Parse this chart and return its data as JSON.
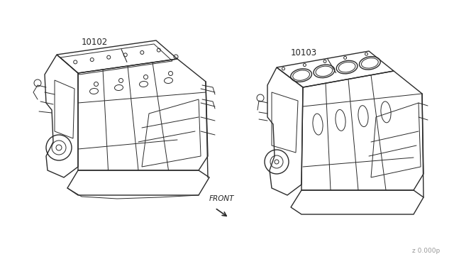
{
  "background_color": "#ffffff",
  "line_color": "#2a2a2a",
  "label_color": "#222222",
  "part_number_left": "10102",
  "part_number_right": "10103",
  "front_label": "FRONT",
  "watermark": "z 0.000p",
  "fig_width": 6.4,
  "fig_height": 3.72,
  "dpi": 100
}
